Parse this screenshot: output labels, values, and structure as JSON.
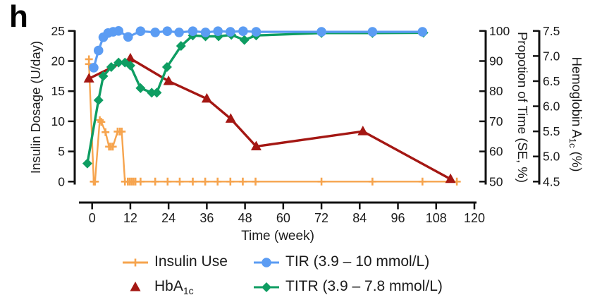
{
  "panel_label": "h",
  "colors": {
    "insulin_orange": "#F6A44E",
    "tir_blue": "#5B9CF3",
    "titr_green": "#0E9D62",
    "hba1c_red": "#A41713",
    "axis_black": "#111111"
  },
  "chart_data": {
    "type": "line",
    "x_axis": {
      "label": "Time (week)",
      "ticks": [
        "0",
        "12",
        "24",
        "36",
        "48",
        "60",
        "72",
        "84",
        "96",
        "108",
        "120"
      ],
      "range": [
        -4,
        120
      ]
    },
    "y_axis_left": {
      "label": "Insulin Dosage (U/day)",
      "ticks": [
        "0",
        "5",
        "10",
        "15",
        "20",
        "25"
      ],
      "range": [
        0,
        25
      ]
    },
    "y_axis_right1": {
      "label": "Propotion of Time (SE, %)",
      "ticks": [
        "50",
        "60",
        "70",
        "80",
        "90",
        "100"
      ],
      "range": [
        50,
        100
      ]
    },
    "y_axis_right2": {
      "label_pre": "Hemoglobin A",
      "label_sub": "1c",
      "label_post": " (%)",
      "ticks": [
        "4.5",
        "5.0",
        "5.5",
        "6.0",
        "6.5",
        "7.0",
        "7.5"
      ],
      "range": [
        4.5,
        7.5
      ]
    },
    "series": [
      {
        "id": "insulin",
        "name": "Insulin Use",
        "axis": "left",
        "marker": "plus",
        "color": "#F6A44E",
        "line_width": 2.4,
        "points": [
          [
            -1,
            20.3
          ],
          [
            -1,
            19.5
          ],
          [
            0.5,
            0
          ],
          [
            0.9,
            0
          ],
          [
            2.4,
            10.2
          ],
          [
            2.9,
            9.9
          ],
          [
            4.2,
            8.2
          ],
          [
            5.3,
            5.8
          ],
          [
            5.9,
            5.8
          ],
          [
            6.5,
            5.8
          ],
          [
            8,
            8.3
          ],
          [
            8.7,
            8.3
          ],
          [
            9.3,
            8.3
          ],
          [
            10.3,
            0
          ],
          [
            11.2,
            0
          ],
          [
            11.8,
            0
          ],
          [
            12.4,
            0
          ],
          [
            13,
            0
          ],
          [
            13.6,
            0
          ],
          [
            15.2,
            0
          ],
          [
            19.8,
            0
          ],
          [
            23.7,
            0
          ],
          [
            27.5,
            0
          ],
          [
            31.6,
            0
          ],
          [
            35.5,
            0
          ],
          [
            39.4,
            0
          ],
          [
            43.4,
            0
          ],
          [
            47.3,
            0
          ],
          [
            51.3,
            0
          ],
          [
            72,
            0
          ],
          [
            88,
            0
          ],
          [
            103.7,
            0
          ],
          [
            114.5,
            0
          ]
        ]
      },
      {
        "id": "hba1c",
        "name": "HbA1c",
        "axis": "right2",
        "marker": "triangle",
        "color": "#A41713",
        "line_width": 3.4,
        "points": [
          [
            -1,
            6.55
          ],
          [
            12,
            6.95
          ],
          [
            24,
            6.5
          ],
          [
            36,
            6.15
          ],
          [
            43.5,
            5.75
          ],
          [
            51.5,
            5.2
          ],
          [
            85,
            5.5
          ],
          [
            112.5,
            4.55
          ]
        ]
      },
      {
        "id": "titr",
        "name": "TITR (3.9 – 7.8 mmol/L)",
        "axis": "right1",
        "marker": "diamond",
        "color": "#0E9D62",
        "line_width": 3.4,
        "points": [
          [
            -1.5,
            56
          ],
          [
            2,
            77
          ],
          [
            3.5,
            85
          ],
          [
            6,
            88
          ],
          [
            8.3,
            89.5
          ],
          [
            10.3,
            89.5
          ],
          [
            12,
            88.5
          ],
          [
            15.2,
            81
          ],
          [
            18.7,
            79.5
          ],
          [
            20.3,
            79.5
          ],
          [
            23.5,
            88
          ],
          [
            27.9,
            95
          ],
          [
            31.6,
            98.5
          ],
          [
            35.6,
            98.2
          ],
          [
            39.7,
            98.2
          ],
          [
            43.7,
            98.7
          ],
          [
            47.8,
            97
          ],
          [
            51.5,
            98.5
          ],
          [
            72,
            99.3
          ],
          [
            88,
            99.3
          ],
          [
            104,
            99.4
          ]
        ]
      },
      {
        "id": "tir",
        "name": "TIR (3.9 – 10 mmol/L)",
        "axis": "right1",
        "marker": "circle",
        "color": "#5B9CF3",
        "line_width": 3.2,
        "points": [
          [
            0.5,
            87.8
          ],
          [
            2,
            93.5
          ],
          [
            3.5,
            97.9
          ],
          [
            5,
            99.3
          ],
          [
            6.6,
            99.7
          ],
          [
            8.3,
            100
          ],
          [
            11.3,
            98
          ],
          [
            15.2,
            99.9
          ],
          [
            19.8,
            99.5
          ],
          [
            23.6,
            99.9
          ],
          [
            27.3,
            99.5
          ],
          [
            31.6,
            99.9
          ],
          [
            35.6,
            99.5
          ],
          [
            39.5,
            99.9
          ],
          [
            43.4,
            99.7
          ],
          [
            47.4,
            99.9
          ],
          [
            51.5,
            99.7
          ],
          [
            72,
            99.7
          ],
          [
            88,
            99.7
          ],
          [
            103.7,
            99.7
          ]
        ]
      }
    ],
    "legend": {
      "items": [
        {
          "text": "Insulin Use",
          "series_id": "insulin",
          "line": true
        },
        {
          "text": "TIR (3.9 – 10 mmol/L)",
          "series_id": "tir",
          "line": true
        },
        {
          "text": "HbA",
          "sub": "1c",
          "series_id": "hba1c",
          "line": false
        },
        {
          "text": "TITR (3.9 – 7.8 mmol/L)",
          "series_id": "titr",
          "line": true
        }
      ]
    }
  }
}
